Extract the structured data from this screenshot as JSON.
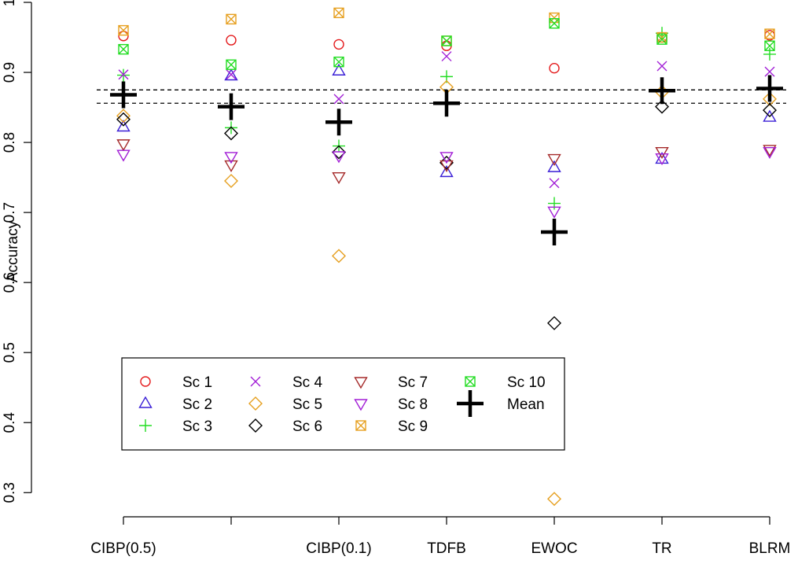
{
  "chart_data": {
    "type": "scatter",
    "title": "",
    "xlabel": "",
    "ylabel": "Accuracy",
    "ylim": [
      0.27,
      1.0
    ],
    "y_ticks": [
      0.3,
      0.4,
      0.5,
      0.6,
      0.7,
      0.8,
      0.9,
      1
    ],
    "y_tick_labels": [
      "0.3",
      "0.4",
      "0.5",
      "0.6",
      "0.7",
      "0.8",
      "0.9",
      "1"
    ],
    "categories": [
      "CIBP(0.5)",
      "",
      "CIBP(0.1)",
      "TDFB",
      "EWOC",
      "TR",
      "BLRM"
    ],
    "reference_lines": [
      0.856,
      0.875
    ],
    "legend_position": "bottom-left",
    "series": [
      {
        "name": "Sc 1",
        "symbol": "circle",
        "color": "#e41a1c",
        "values": [
          0.952,
          0.946,
          0.94,
          0.938,
          0.906,
          0.95,
          0.953
        ]
      },
      {
        "name": "Sc 2",
        "symbol": "triangle-up",
        "color": "#3a1fd6",
        "values": [
          0.822,
          0.895,
          0.902,
          0.757,
          0.764,
          0.776,
          0.836
        ]
      },
      {
        "name": "Sc 3",
        "symbol": "plus",
        "color": "#22dd22",
        "values": [
          0.896,
          0.821,
          0.795,
          0.894,
          0.713,
          0.956,
          0.926
        ]
      },
      {
        "name": "Sc 4",
        "symbol": "cross",
        "color": "#a21fd6",
        "values": [
          0.897,
          0.897,
          0.862,
          0.923,
          0.742,
          0.909,
          0.901
        ]
      },
      {
        "name": "Sc 5",
        "symbol": "diamond",
        "color": "#e6a020",
        "values": [
          0.838,
          0.745,
          0.638,
          0.879,
          0.291,
          0.872,
          0.862
        ]
      },
      {
        "name": "Sc 6",
        "symbol": "diamond",
        "color": "#000000",
        "values": [
          0.833,
          0.813,
          0.786,
          0.771,
          0.542,
          0.851,
          0.846
        ]
      },
      {
        "name": "Sc 7",
        "symbol": "triangle-down",
        "color": "#a52a2a",
        "values": [
          0.798,
          0.768,
          0.751,
          0.768,
          0.777,
          0.787,
          0.79
        ]
      },
      {
        "name": "Sc 8",
        "symbol": "triangle-down",
        "color": "#a21fd6",
        "values": [
          0.783,
          0.78,
          0.781,
          0.78,
          0.702,
          0.778,
          0.787
        ]
      },
      {
        "name": "Sc 9",
        "symbol": "box-x",
        "color": "#e6a020",
        "values": [
          0.96,
          0.976,
          0.985,
          0.945,
          0.978,
          0.95,
          0.955
        ]
      },
      {
        "name": "Sc 10",
        "symbol": "box-x",
        "color": "#22dd22",
        "values": [
          0.933,
          0.911,
          0.915,
          0.945,
          0.97,
          0.947,
          0.938
        ]
      },
      {
        "name": "Mean",
        "symbol": "bold-plus",
        "color": "#000000",
        "values": [
          0.868,
          0.851,
          0.829,
          0.856,
          0.672,
          0.874,
          0.877
        ]
      }
    ]
  }
}
